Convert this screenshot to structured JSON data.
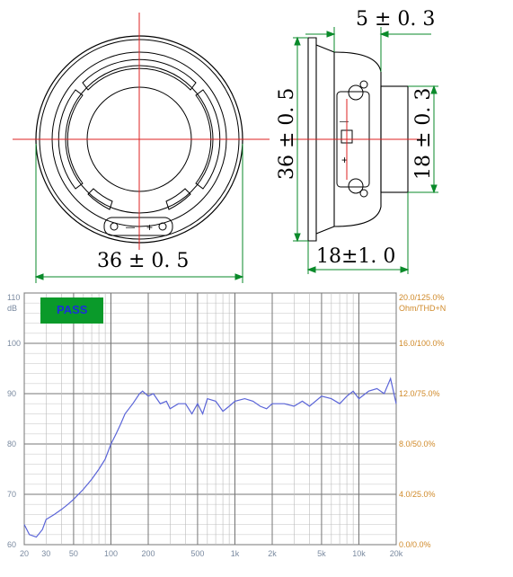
{
  "front_view": {
    "width_dim": "36 ± 0. 5",
    "terminal_minus": "—",
    "terminal_plus": "+"
  },
  "side_view": {
    "depth_top_dim": "5 ± 0. 3",
    "height_dim": "36 ± 0. 5",
    "magnet_dim": "18 ± 0. 3",
    "depth_bottom_dim": "18±1. 0",
    "terminal_minus": "—",
    "terminal_plus": "+"
  },
  "frequency_response": {
    "status": "PASS",
    "y_left_unit": "dB",
    "y_right_unit": "Ohm/THD+N",
    "y_left_ticks": [
      "110",
      "100",
      "90",
      "80",
      "70",
      "60"
    ],
    "y_right_ticks": [
      "20.0/125.0%",
      "16.0/100.0%",
      "12.0/75.0%",
      "8.0/50.0%",
      "4.0/25.0%",
      "0.0/0.0%"
    ],
    "x_ticks": [
      "20",
      "30",
      "50",
      "100",
      "200",
      "500",
      "1k",
      "2k",
      "5k",
      "10k",
      "20k"
    ],
    "colors": {
      "curve": "#5a64d8",
      "grid": "#999999",
      "right_axis": "#d08a2a",
      "pass_box": "#0a9a2a"
    }
  },
  "chart_data": {
    "type": "line",
    "xscale": "log",
    "xlim": [
      20,
      20000
    ],
    "ylim": [
      60,
      110
    ],
    "series": [
      {
        "x": [
          20,
          22,
          25,
          28,
          30,
          35,
          40,
          45,
          50,
          60,
          70,
          80,
          90,
          100,
          110,
          120,
          130,
          150,
          170,
          180,
          200,
          220,
          250,
          280,
          300,
          350,
          400,
          450,
          500,
          550,
          600,
          700,
          800,
          900,
          1000,
          1200,
          1400,
          1600,
          1800,
          2000,
          2500,
          3000,
          3500,
          4000,
          5000,
          6000,
          7000,
          8000,
          9000,
          10000,
          12000,
          14000,
          16000,
          18000,
          20000
        ],
        "y": [
          64,
          62,
          61.5,
          63,
          65,
          66,
          67,
          68,
          69,
          71,
          73,
          75,
          77,
          80,
          82,
          84,
          86,
          88,
          90,
          90.5,
          89.5,
          90,
          88,
          88.5,
          87,
          88,
          88,
          86,
          88,
          86,
          89,
          88.5,
          86.5,
          87.5,
          88.5,
          89,
          88.5,
          87.5,
          87,
          88,
          88,
          87.5,
          88.5,
          87.5,
          89.5,
          89,
          88,
          89.5,
          90.5,
          89,
          90.5,
          91,
          90,
          93,
          88
        ]
      }
    ]
  }
}
